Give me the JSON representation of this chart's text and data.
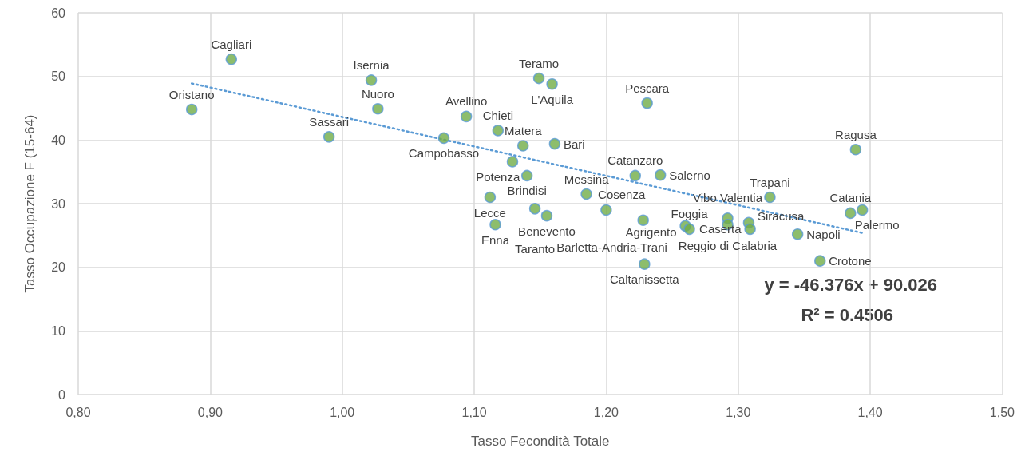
{
  "chart_data": {
    "type": "scatter",
    "xlabel": "Tasso Fecondità Totale",
    "ylabel": "Tasso Occupazione F (15-64)",
    "x": [
      0.886,
      0.916,
      0.99,
      1.022,
      1.027,
      1.077,
      1.094,
      1.118,
      1.137,
      1.129,
      1.14,
      1.112,
      1.116,
      1.149,
      1.159,
      1.161,
      1.146,
      1.155,
      1.185,
      1.2,
      1.222,
      1.241,
      1.228,
      1.231,
      1.229,
      1.26,
      1.263,
      1.292,
      1.292,
      1.308,
      1.309,
      1.324,
      1.345,
      1.362,
      1.385,
      1.394,
      1.389
    ],
    "series": [
      {
        "type": "scatter",
        "color": "#70ad47",
        "marker": "circle",
        "values": [
          44.8,
          52.7,
          40.5,
          49.4,
          44.9,
          40.3,
          43.7,
          41.5,
          39.1,
          36.6,
          34.4,
          31.0,
          26.7,
          49.7,
          48.8,
          39.4,
          29.2,
          28.1,
          31.5,
          29.0,
          34.4,
          34.5,
          27.4,
          45.8,
          20.5,
          26.5,
          26.0,
          27.7,
          26.7,
          27.0,
          26.0,
          31.0,
          25.2,
          21.0,
          28.5,
          29.0,
          38.5
        ]
      },
      {
        "type": "line",
        "color": "#5b9bd5",
        "line_style": "dotted",
        "marker": "none",
        "x": [
          0.886,
          1.394
        ],
        "values": [
          48.9,
          25.4
        ]
      }
    ],
    "annotations": [
      {
        "text": "Oristano",
        "x": 0.886,
        "y": 44.8
      },
      {
        "text": "Cagliari",
        "x": 0.916,
        "y": 52.7
      },
      {
        "text": "Sassari",
        "x": 0.99,
        "y": 40.5
      },
      {
        "text": "Isernia",
        "x": 1.022,
        "y": 49.4
      },
      {
        "text": "Nuoro",
        "x": 1.027,
        "y": 44.9
      },
      {
        "text": "Campobasso",
        "x": 1.077,
        "y": 40.3
      },
      {
        "text": "Avellino",
        "x": 1.094,
        "y": 43.7
      },
      {
        "text": "Chieti",
        "x": 1.118,
        "y": 41.5
      },
      {
        "text": "Matera",
        "x": 1.137,
        "y": 39.1
      },
      {
        "text": "Potenza",
        "x": 1.129,
        "y": 36.6
      },
      {
        "text": "Brindisi",
        "x": 1.14,
        "y": 34.4
      },
      {
        "text": "Lecce",
        "x": 1.112,
        "y": 31.0
      },
      {
        "text": "Enna",
        "x": 1.116,
        "y": 26.7
      },
      {
        "text": "Teramo",
        "x": 1.149,
        "y": 49.7
      },
      {
        "text": "L'Aquila",
        "x": 1.159,
        "y": 48.8
      },
      {
        "text": "Bari",
        "x": 1.161,
        "y": 39.4
      },
      {
        "text": "Taranto",
        "x": 1.146,
        "y": 29.2
      },
      {
        "text": "Benevento",
        "x": 1.155,
        "y": 28.1
      },
      {
        "text": "Messina",
        "x": 1.185,
        "y": 31.5
      },
      {
        "text": "Cosenza",
        "x": 1.2,
        "y": 29.0
      },
      {
        "text": "Catanzaro",
        "x": 1.222,
        "y": 34.4
      },
      {
        "text": "Salerno",
        "x": 1.241,
        "y": 34.5
      },
      {
        "text": "Barletta-Andria-Trani",
        "x": 1.228,
        "y": 27.4
      },
      {
        "text": "Pescara",
        "x": 1.231,
        "y": 45.8
      },
      {
        "text": "Caltanissetta",
        "x": 1.229,
        "y": 20.5
      },
      {
        "text": "Agrigento",
        "x": 1.26,
        "y": 26.5
      },
      {
        "text": "Foggia",
        "x": 1.263,
        "y": 26.0
      },
      {
        "text": "Reggio di Calabria",
        "x": 1.292,
        "y": 27.7
      },
      {
        "text": "Vibo Valentia",
        "x": 1.292,
        "y": 26.7
      },
      {
        "text": "Siracusa",
        "x": 1.308,
        "y": 27.0
      },
      {
        "text": "Caserta",
        "x": 1.309,
        "y": 26.0
      },
      {
        "text": "Trapani",
        "x": 1.324,
        "y": 31.0
      },
      {
        "text": "Napoli",
        "x": 1.345,
        "y": 25.2
      },
      {
        "text": "Crotone",
        "x": 1.362,
        "y": 21.0
      },
      {
        "text": "Catania",
        "x": 1.385,
        "y": 28.5
      },
      {
        "text": "Palermo",
        "x": 1.394,
        "y": 29.0
      },
      {
        "text": "Ragusa",
        "x": 1.389,
        "y": 38.5
      },
      "y = -46.376x + 90.026",
      "R² = 0.4506"
    ],
    "xlim": [
      0.8,
      1.5
    ],
    "xticks": [
      {
        "value": 0.8,
        "label": "0,80"
      },
      {
        "value": 0.9,
        "label": "0,90"
      },
      {
        "value": 1.0,
        "label": "1,00"
      },
      {
        "value": 1.1,
        "label": "1,10"
      },
      {
        "value": 1.2,
        "label": "1,20"
      },
      {
        "value": 1.3,
        "label": "1,30"
      },
      {
        "value": 1.4,
        "label": "1,40"
      },
      {
        "value": 1.5,
        "label": "1,50"
      }
    ],
    "ylim": [
      0,
      60
    ],
    "yticks": [
      0,
      10,
      20,
      30,
      40,
      50,
      60
    ],
    "grid": true
  }
}
